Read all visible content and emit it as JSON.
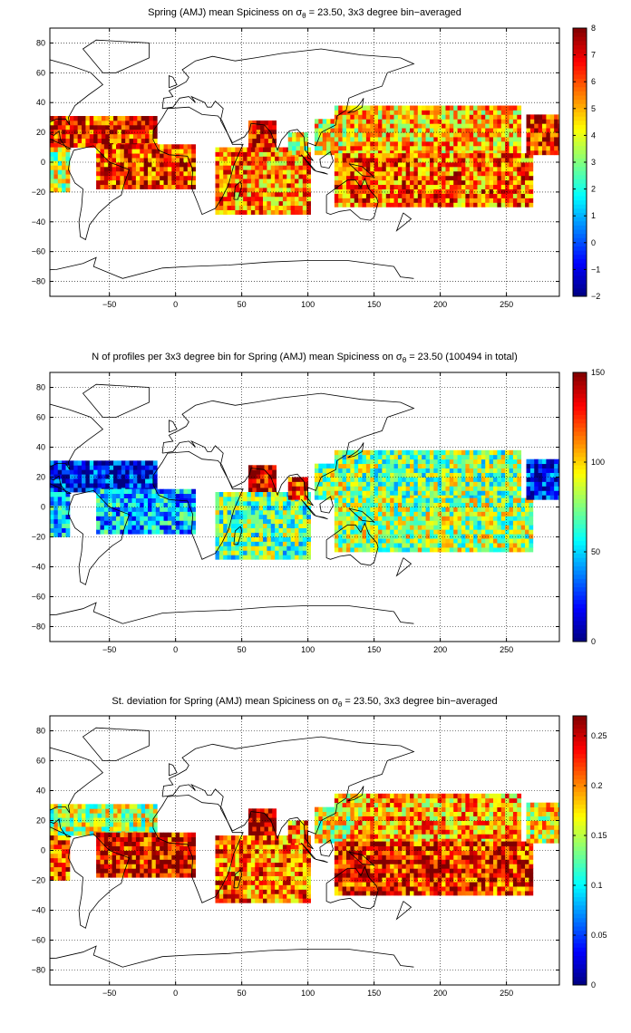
{
  "chart_data": [
    {
      "type": "heatmap",
      "title_prefix": "Spring (AMJ) mean Spiciness on ",
      "title_symbol": "σ",
      "title_subscript": "θ",
      "title_suffix": " = 23.50, 3x3 degree bin−averaged",
      "xlabel": "",
      "ylabel": "",
      "xlim": [
        -95,
        290
      ],
      "ylim": [
        -90,
        90
      ],
      "xticks": [
        -50,
        0,
        50,
        100,
        150,
        200,
        250
      ],
      "yticks": [
        -80,
        -60,
        -40,
        -20,
        0,
        20,
        40,
        60,
        80
      ],
      "grid": true,
      "colormap": "jet",
      "clim": [
        -2,
        8
      ],
      "colorbar_ticks": [
        -2,
        -1,
        0,
        1,
        2,
        3,
        4,
        5,
        6,
        7,
        8
      ],
      "bin_deg": 3,
      "regions": [
        {
          "lon": [
            -95,
            -15
          ],
          "lat": [
            10,
            30
          ],
          "value": 6.5
        },
        {
          "lon": [
            -95,
            -80
          ],
          "lat": [
            -20,
            10
          ],
          "value": 3.8
        },
        {
          "lon": [
            -60,
            15
          ],
          "lat": [
            -18,
            10
          ],
          "value": 6.3
        },
        {
          "lon": [
            55,
            75
          ],
          "lat": [
            10,
            27
          ],
          "value": 7.0
        },
        {
          "lon": [
            30,
            100
          ],
          "lat": [
            -35,
            10
          ],
          "value": 5.5
        },
        {
          "lon": [
            85,
            100
          ],
          "lat": [
            5,
            20
          ],
          "value": 4.0
        },
        {
          "lon": [
            105,
            130
          ],
          "lat": [
            5,
            27
          ],
          "value": 4.2
        },
        {
          "lon": [
            120,
            260
          ],
          "lat": [
            5,
            38
          ],
          "value": 4.9
        },
        {
          "lon": [
            120,
            270
          ],
          "lat": [
            -30,
            5
          ],
          "value": 5.8
        },
        {
          "lon": [
            265,
            290
          ],
          "lat": [
            5,
            30
          ],
          "value": 6.5
        }
      ]
    },
    {
      "type": "heatmap",
      "title_prefix": "N of profiles per 3x3 degree bin for Spring (AMJ) mean Spiciness on ",
      "title_symbol": "σ",
      "title_subscript": "θ",
      "title_suffix": " = 23.50 (100494 in total)",
      "xlabel": "",
      "ylabel": "",
      "xlim": [
        -95,
        290
      ],
      "ylim": [
        -90,
        90
      ],
      "xticks": [
        -50,
        0,
        50,
        100,
        150,
        200,
        250
      ],
      "yticks": [
        -80,
        -60,
        -40,
        -20,
        0,
        20,
        40,
        60,
        80
      ],
      "grid": true,
      "colormap": "jet",
      "clim": [
        0,
        150
      ],
      "colorbar_ticks": [
        0,
        50,
        100,
        150
      ],
      "bin_deg": 3,
      "regions": [
        {
          "lon": [
            -95,
            -15
          ],
          "lat": [
            10,
            30
          ],
          "value": 20
        },
        {
          "lon": [
            -95,
            -80
          ],
          "lat": [
            -20,
            10
          ],
          "value": 45
        },
        {
          "lon": [
            -60,
            15
          ],
          "lat": [
            -18,
            10
          ],
          "value": 45
        },
        {
          "lon": [
            55,
            75
          ],
          "lat": [
            10,
            27
          ],
          "value": 140
        },
        {
          "lon": [
            30,
            100
          ],
          "lat": [
            -35,
            10
          ],
          "value": 70
        },
        {
          "lon": [
            85,
            100
          ],
          "lat": [
            5,
            20
          ],
          "value": 130
        },
        {
          "lon": [
            105,
            130
          ],
          "lat": [
            5,
            27
          ],
          "value": 80
        },
        {
          "lon": [
            120,
            260
          ],
          "lat": [
            5,
            38
          ],
          "value": 75
        },
        {
          "lon": [
            120,
            270
          ],
          "lat": [
            -30,
            5
          ],
          "value": 80
        },
        {
          "lon": [
            265,
            290
          ],
          "lat": [
            5,
            30
          ],
          "value": 20
        }
      ]
    },
    {
      "type": "heatmap",
      "title_prefix": "St. deviation for Spring (AMJ) mean Spiciness on ",
      "title_symbol": "σ",
      "title_subscript": "θ",
      "title_suffix": " = 23.50, 3x3 degree bin−averaged",
      "xlabel": "",
      "ylabel": "",
      "xlim": [
        -95,
        290
      ],
      "ylim": [
        -90,
        90
      ],
      "xticks": [
        -50,
        0,
        50,
        100,
        150,
        200,
        250
      ],
      "yticks": [
        -80,
        -60,
        -40,
        -20,
        0,
        20,
        40,
        60,
        80
      ],
      "grid": true,
      "colormap": "jet",
      "clim": [
        0,
        0.27
      ],
      "colorbar_ticks": [
        0,
        0.05,
        0.1,
        0.15,
        0.2,
        0.25
      ],
      "bin_deg": 3,
      "regions": [
        {
          "lon": [
            -95,
            -15
          ],
          "lat": [
            10,
            30
          ],
          "value": 0.15
        },
        {
          "lon": [
            -95,
            -80
          ],
          "lat": [
            -20,
            10
          ],
          "value": 0.22
        },
        {
          "lon": [
            -60,
            15
          ],
          "lat": [
            -18,
            10
          ],
          "value": 0.24
        },
        {
          "lon": [
            55,
            75
          ],
          "lat": [
            10,
            27
          ],
          "value": 0.26
        },
        {
          "lon": [
            30,
            100
          ],
          "lat": [
            -35,
            10
          ],
          "value": 0.21
        },
        {
          "lon": [
            85,
            100
          ],
          "lat": [
            5,
            20
          ],
          "value": 0.2
        },
        {
          "lon": [
            105,
            130
          ],
          "lat": [
            5,
            27
          ],
          "value": 0.16
        },
        {
          "lon": [
            120,
            260
          ],
          "lat": [
            5,
            38
          ],
          "value": 0.19
        },
        {
          "lon": [
            120,
            270
          ],
          "lat": [
            -30,
            5
          ],
          "value": 0.23
        },
        {
          "lon": [
            265,
            290
          ],
          "lat": [
            5,
            30
          ],
          "value": 0.17
        }
      ]
    }
  ]
}
